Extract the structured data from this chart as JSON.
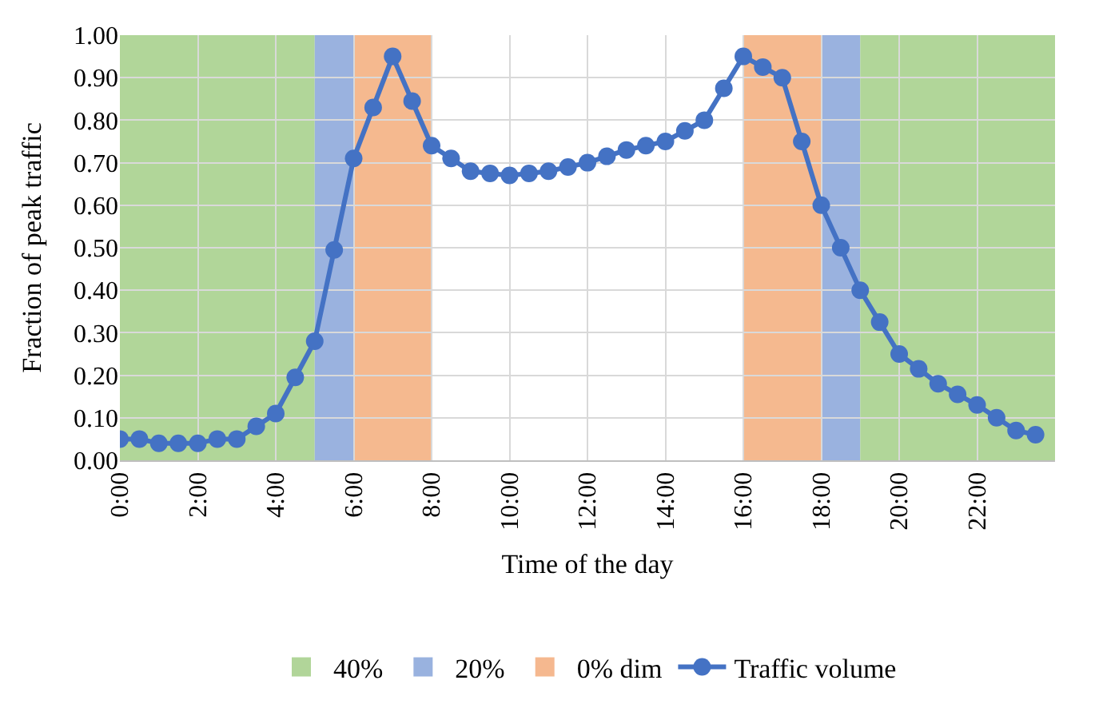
{
  "chart_data": {
    "type": "line",
    "xlabel": "Time of the day",
    "ylabel": "Fraction of peak traffic",
    "x": [
      0,
      0.5,
      1,
      1.5,
      2,
      2.5,
      3,
      3.5,
      4,
      4.5,
      5,
      5.5,
      6,
      6.5,
      7,
      7.5,
      8,
      8.5,
      9,
      9.5,
      10,
      10.5,
      11,
      11.5,
      12,
      12.5,
      13,
      13.5,
      14,
      14.5,
      15,
      15.5,
      16,
      16.5,
      17,
      17.5,
      18,
      18.5,
      19,
      19.5,
      20,
      20.5,
      21,
      21.5,
      22,
      22.5,
      23,
      23.5
    ],
    "series": [
      {
        "name": "Traffic volume",
        "color": "#4472c4",
        "values": [
          0.05,
          0.05,
          0.04,
          0.04,
          0.04,
          0.05,
          0.05,
          0.08,
          0.11,
          0.195,
          0.28,
          0.495,
          0.71,
          0.83,
          0.95,
          0.845,
          0.74,
          0.71,
          0.68,
          0.675,
          0.67,
          0.675,
          0.68,
          0.69,
          0.7,
          0.715,
          0.73,
          0.74,
          0.75,
          0.775,
          0.8,
          0.875,
          0.95,
          0.925,
          0.9,
          0.75,
          0.6,
          0.5,
          0.4,
          0.325,
          0.25,
          0.215,
          0.18,
          0.155,
          0.13,
          0.1,
          0.07,
          0.06
        ]
      }
    ],
    "bands": [
      {
        "axis": "x",
        "from": 0,
        "to": 5,
        "label": "40%",
        "color": "#a9d18e"
      },
      {
        "axis": "x",
        "from": 5,
        "to": 6,
        "label": "20%",
        "color": "#8faadc"
      },
      {
        "axis": "x",
        "from": 6,
        "to": 8,
        "label": "0% dim",
        "color": "#f4b183"
      },
      {
        "axis": "x",
        "from": 16,
        "to": 18,
        "color": "#f4b183"
      },
      {
        "axis": "x",
        "from": 18,
        "to": 19,
        "color": "#8faadc"
      },
      {
        "axis": "x",
        "from": 19,
        "to": 24,
        "color": "#a9d18e"
      }
    ],
    "xlim": [
      0,
      24
    ],
    "xticks": [
      {
        "value": 0,
        "label": "0:00"
      },
      {
        "value": 2,
        "label": "2:00"
      },
      {
        "value": 4,
        "label": "4:00"
      },
      {
        "value": 6,
        "label": "6:00"
      },
      {
        "value": 8,
        "label": "8:00"
      },
      {
        "value": 10,
        "label": "10:00"
      },
      {
        "value": 12,
        "label": "12:00"
      },
      {
        "value": 14,
        "label": "14:00"
      },
      {
        "value": 16,
        "label": "16:00"
      },
      {
        "value": 18,
        "label": "18:00"
      },
      {
        "value": 20,
        "label": "20:00"
      },
      {
        "value": 22,
        "label": "22:00"
      }
    ],
    "ylim": [
      0,
      1
    ],
    "yticks": [
      {
        "value": 0,
        "label": "0.00"
      },
      {
        "value": 0.1,
        "label": "0.10"
      },
      {
        "value": 0.2,
        "label": "0.20"
      },
      {
        "value": 0.3,
        "label": "0.30"
      },
      {
        "value": 0.4,
        "label": "0.40"
      },
      {
        "value": 0.5,
        "label": "0.50"
      },
      {
        "value": 0.6,
        "label": "0.60"
      },
      {
        "value": 0.7,
        "label": "0.70"
      },
      {
        "value": 0.8,
        "label": "0.80"
      },
      {
        "value": 0.9,
        "label": "0.90"
      },
      {
        "value": 1,
        "label": "1.00"
      }
    ],
    "grid": true,
    "legend": "bottom",
    "marker": "circle",
    "line_style": "solid"
  }
}
